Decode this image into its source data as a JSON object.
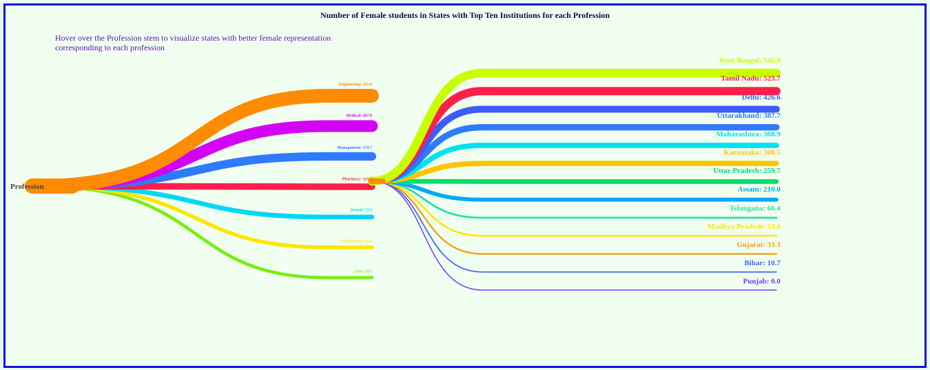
{
  "chart_data": {
    "type": "tree",
    "title": "Number of Female students in States with Top Ten Institutions for each Profession",
    "subtitle": "Hover over the Profession stem to visualize states with better female representation corresponding to each profession",
    "root": "Profession",
    "professions": [
      {
        "name": "Engineering",
        "value": 325.0,
        "color": "#ff8c00"
      },
      {
        "name": "Medical",
        "value": 267.9,
        "color": "#d400f5"
      },
      {
        "name": "Management",
        "value": 174.7,
        "color": "#2e7bff"
      },
      {
        "name": "Pharmacy",
        "value": 123.5,
        "color": "#ff1f4b"
      },
      {
        "name": "Dental",
        "value": 72.5,
        "color": "#00d7f5"
      },
      {
        "name": "Architecture",
        "value": 47.2,
        "color": "#ffe500"
      },
      {
        "name": "Law",
        "value": 32.1,
        "color": "#77ee11"
      }
    ],
    "states": [
      {
        "name": "West Bengal",
        "value": 545.3,
        "color": "#c8ff00"
      },
      {
        "name": "Tamil Nadu",
        "value": 523.7,
        "color": "#ff1f4b"
      },
      {
        "name": "Delhi",
        "value": 426.6,
        "color": "#3d5cff"
      },
      {
        "name": "Uttarakhand",
        "value": 387.7,
        "color": "#2e7bff"
      },
      {
        "name": "Maharashtra",
        "value": 308.9,
        "color": "#00e2f0"
      },
      {
        "name": "Karnataka",
        "value": 308.5,
        "color": "#ffc400"
      },
      {
        "name": "Uttar Pradesh",
        "value": 259.7,
        "color": "#00e06a"
      },
      {
        "name": "Assam",
        "value": 210.0,
        "color": "#00a8f5"
      },
      {
        "name": "Telangana",
        "value": 66.4,
        "color": "#26e0b0"
      },
      {
        "name": "Madhya Pradesh",
        "value": 53.0,
        "color": "#ffe500"
      },
      {
        "name": "Gujarat",
        "value": 33.3,
        "color": "#f59a00"
      },
      {
        "name": "Bihar",
        "value": 10.7,
        "color": "#3f63ff"
      },
      {
        "name": "Punjab",
        "value": 0.0,
        "color": "#6b3cff"
      }
    ]
  }
}
